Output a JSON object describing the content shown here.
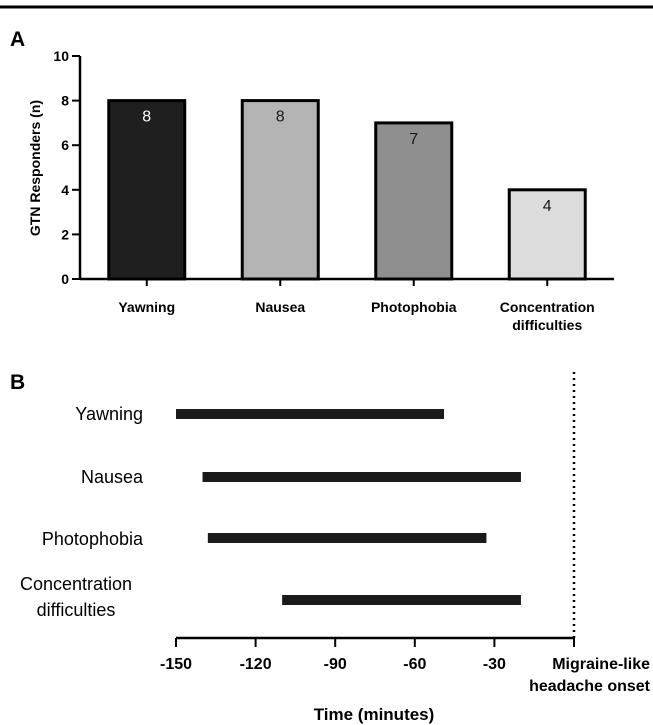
{
  "chart_data": [
    {
      "panel": "A",
      "type": "bar",
      "ylabel": "GTN Responders (n)",
      "ylim": [
        0,
        10
      ],
      "yticks": [
        "0",
        "2",
        "4",
        "6",
        "8",
        "10"
      ],
      "categories": [
        [
          "Yawning"
        ],
        [
          "Nausea"
        ],
        [
          "Photophobia"
        ],
        [
          "Concentration",
          "difficulties"
        ]
      ],
      "values": [
        8,
        8,
        7,
        4
      ],
      "data_labels": [
        "8",
        "8",
        "7",
        "4"
      ],
      "colors": [
        "#1f1f1f",
        "#b4b4b4",
        "#8f8f8f",
        "#dcdcdc"
      ],
      "label_colors": [
        "#ffffff",
        "#1a1a1a",
        "#1a1a1a",
        "#1a1a1a"
      ],
      "grid": false
    },
    {
      "panel": "B",
      "type": "bar",
      "orientation": "horizontal-range",
      "xlabel": "Time (minutes)",
      "xlim": [
        -150,
        0
      ],
      "xticks": [
        "-150",
        "-120",
        "-90",
        "-60",
        "-30"
      ],
      "xtick_values": [
        -150,
        -120,
        -90,
        -60,
        -30
      ],
      "onset_label": [
        "Migraine-like",
        "headache onset"
      ],
      "onset_x": 0,
      "categories": [
        [
          "Yawning"
        ],
        [
          "Nausea"
        ],
        [
          "Photophobia"
        ],
        [
          "Concentration",
          "difficulties"
        ]
      ],
      "ranges": [
        [
          -150,
          -49
        ],
        [
          -140,
          -20
        ],
        [
          -138,
          -33
        ],
        [
          -110,
          -20
        ]
      ],
      "grid": false
    }
  ],
  "panel_letters": [
    "A",
    "B"
  ]
}
